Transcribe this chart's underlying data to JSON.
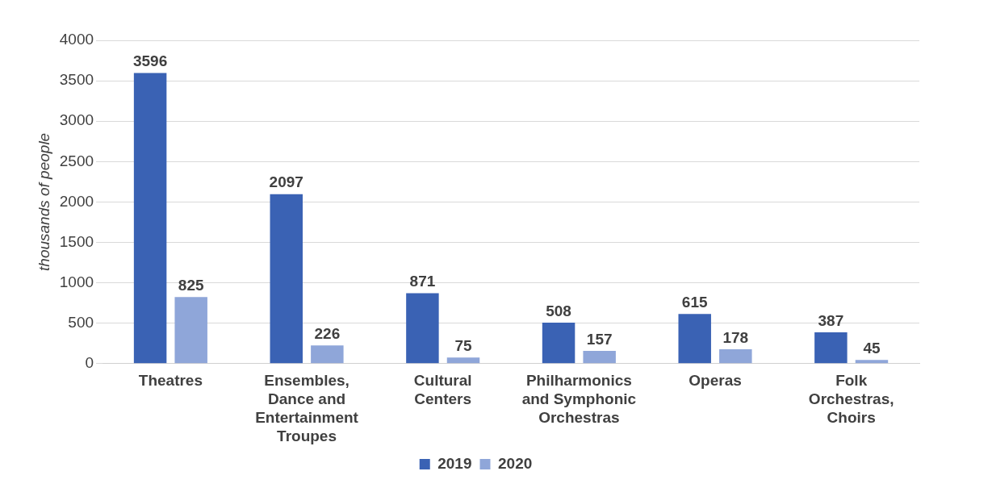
{
  "chart_data": {
    "type": "bar",
    "ylabel": "thousands of people",
    "categories": [
      "Theatres",
      "Ensembles, Dance and Entertainment Troupes",
      "Cultural Centers",
      "Philharmonics and Symphonic Orchestras",
      "Operas",
      "Folk Orchestras, Choirs"
    ],
    "series": [
      {
        "name": "2019",
        "color": "#3a62b4",
        "values": [
          3596,
          2097,
          871,
          508,
          615,
          387
        ]
      },
      {
        "name": "2020",
        "color": "#8fa6d9",
        "values": [
          825,
          226,
          75,
          157,
          178,
          45
        ]
      }
    ],
    "ylim": [
      0,
      4000
    ],
    "yticks": [
      0,
      500,
      1000,
      1500,
      2000,
      2500,
      3000,
      3500,
      4000
    ],
    "grid": "y",
    "legend": "bottom",
    "data_labels": true
  }
}
